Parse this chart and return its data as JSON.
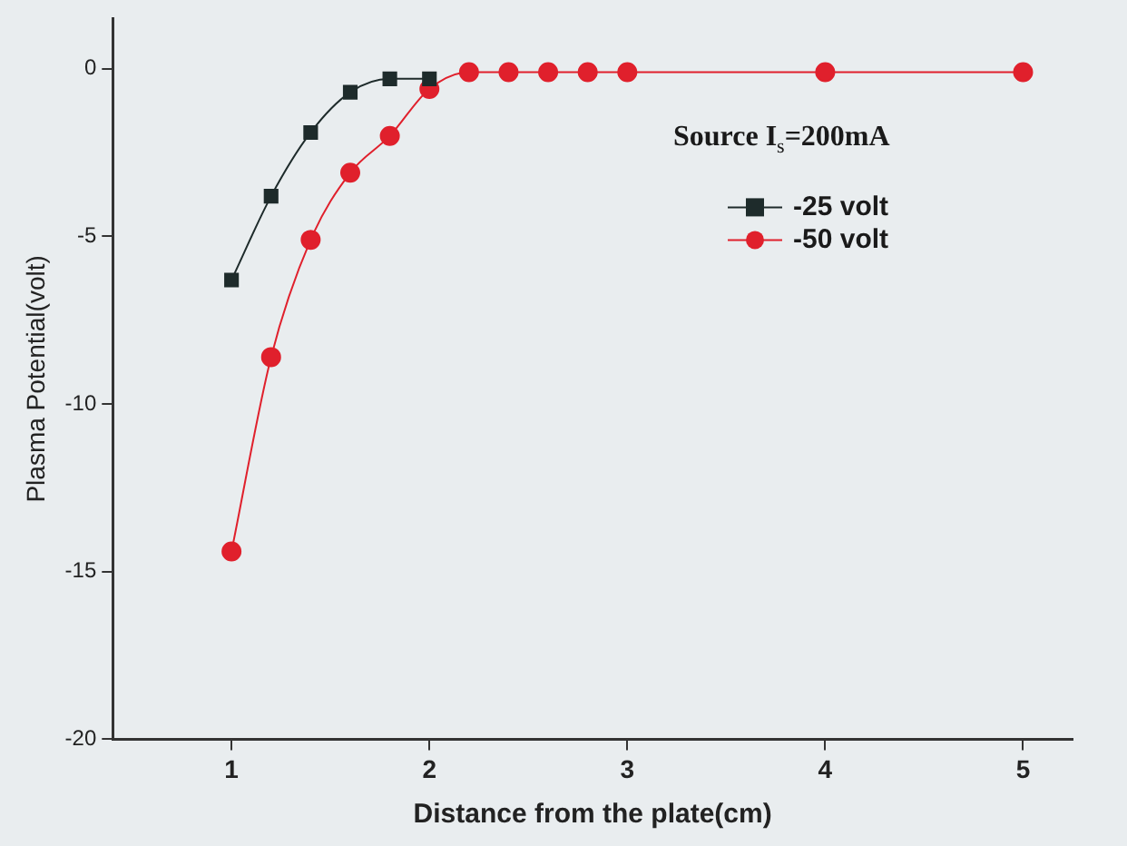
{
  "chart_data": {
    "type": "line",
    "xlabel": "Distance from the plate(cm)",
    "ylabel": "Plasma Potential(volt)",
    "x": [
      1,
      1.2,
      1.4,
      1.6,
      1.8,
      2,
      2.2,
      2.4,
      2.6,
      2.8,
      3,
      4,
      5
    ],
    "series": [
      {
        "name": "-25 volt",
        "color": "#1e2b2b",
        "marker": "square",
        "values": [
          -6.3,
          -3.8,
          -1.9,
          -0.7,
          -0.3,
          -0.3,
          null,
          null,
          null,
          null,
          null,
          null,
          null
        ]
      },
      {
        "name": "-50 volt",
        "color": "#e0202c",
        "marker": "circle",
        "values": [
          -14.4,
          -8.6,
          -5.1,
          -3.1,
          -2.0,
          -0.6,
          -0.1,
          -0.1,
          -0.1,
          -0.1,
          -0.1,
          -0.1,
          -0.1
        ]
      }
    ],
    "xlim": [
      0.4,
      5.25
    ],
    "xticks": [
      1,
      2,
      3,
      4,
      5
    ],
    "ylim": [
      -20,
      1.5
    ],
    "yticks": [
      0,
      -5,
      -10,
      -15,
      -20
    ],
    "grid": false,
    "legend": "top right",
    "annotations": [
      "Source I$_{s}$=200mA"
    ]
  }
}
